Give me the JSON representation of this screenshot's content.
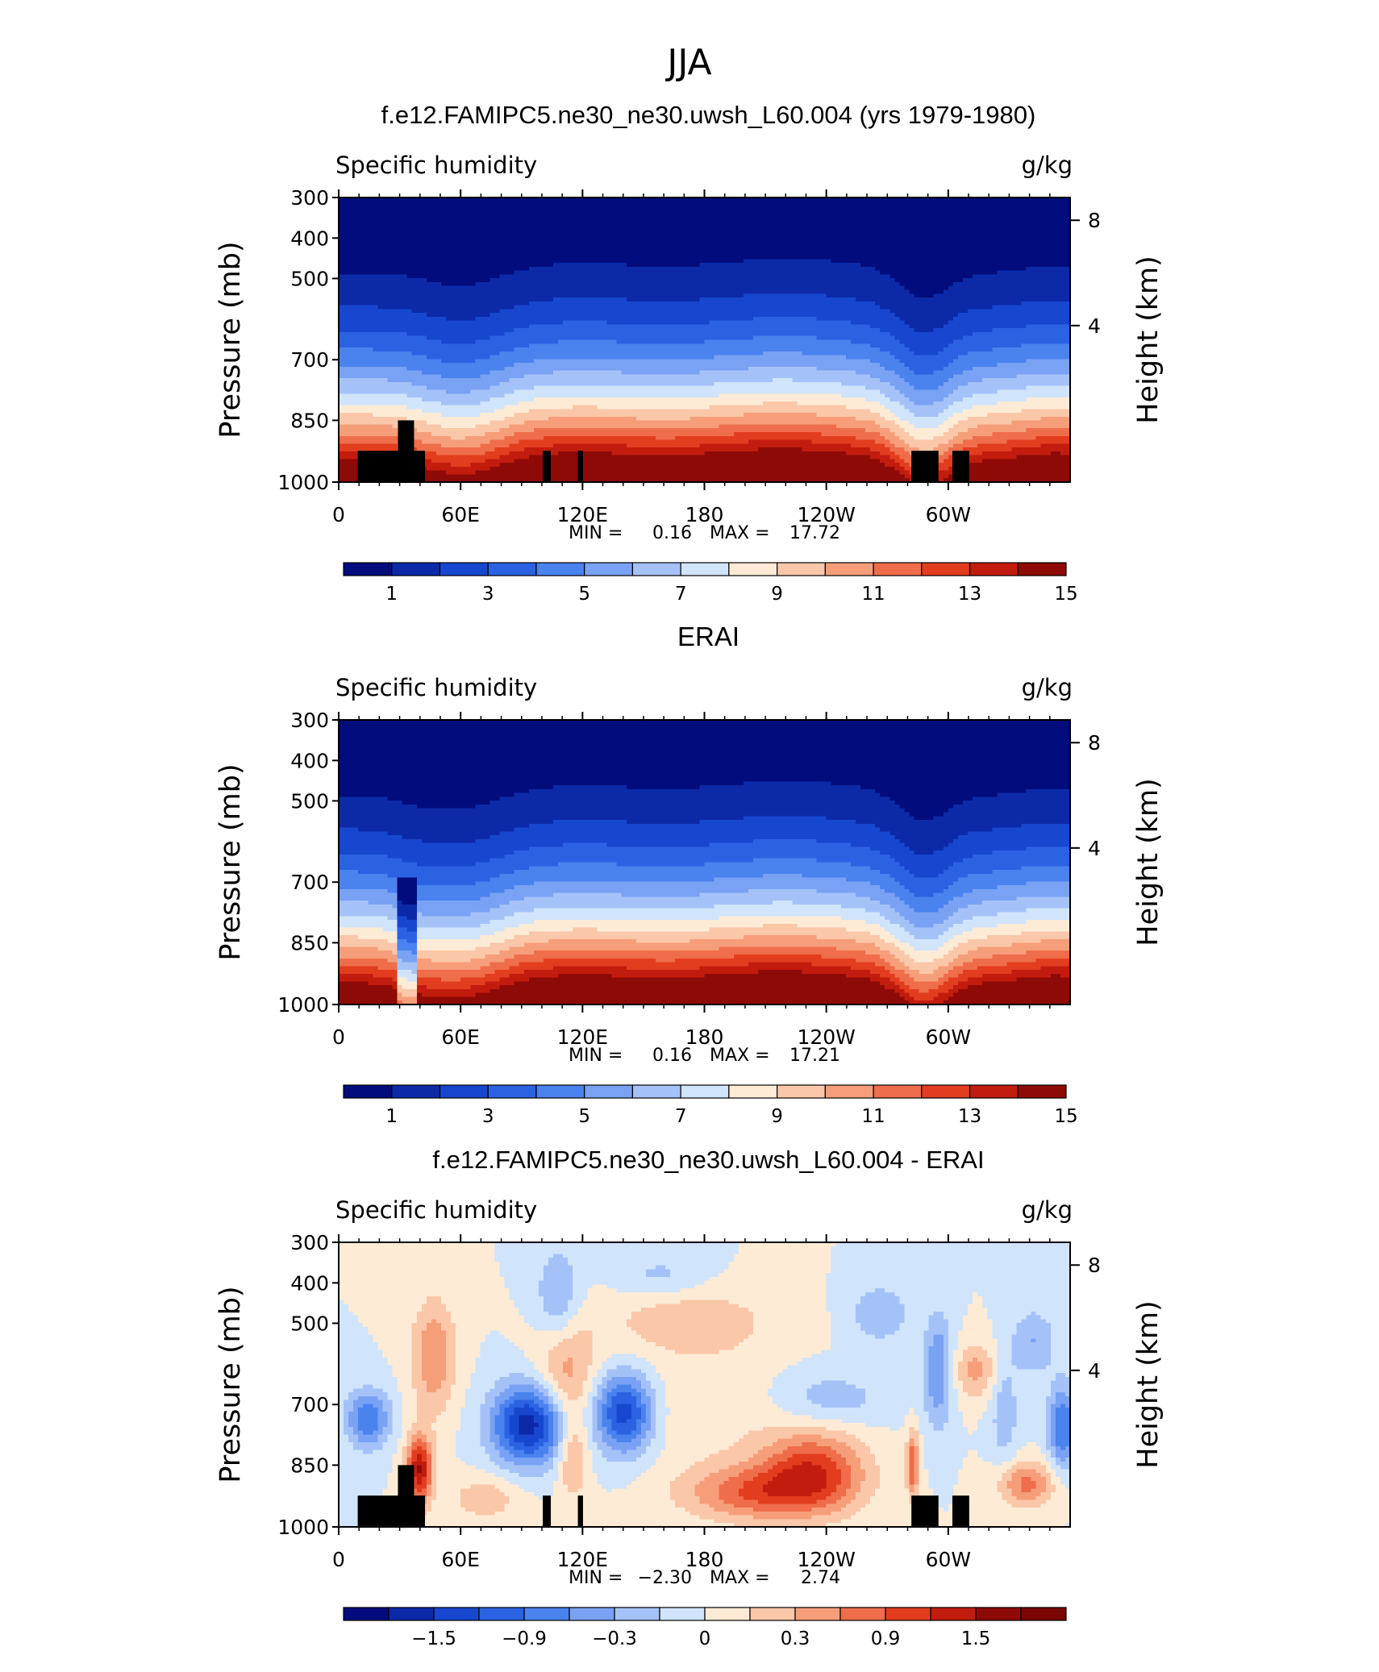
{
  "figure": {
    "title": "JJA"
  },
  "colors": {
    "seq": [
      "#020c7c",
      "#0c2aa8",
      "#1747cf",
      "#2b62e2",
      "#4a82ee",
      "#79a2f4",
      "#a5c2f8",
      "#d0e4fb",
      "#fdebd6",
      "#fbc7a9",
      "#f69e7a",
      "#ef6d4a",
      "#e23d1f",
      "#c21c0e",
      "#8e0a06"
    ],
    "div": [
      "#020c7c",
      "#0c2aa8",
      "#1747cf",
      "#2b62e2",
      "#4a82ee",
      "#79a2f4",
      "#a5c2f8",
      "#d0e4fb",
      "#fdebd6",
      "#fbc7a9",
      "#f69e7a",
      "#ef6d4a",
      "#e23d1f",
      "#c21c0e",
      "#8e0a06",
      "#7a0503"
    ]
  },
  "chart_data": [
    {
      "type": "heatmap",
      "title": "f.e12.FAMIPC5.ne30_ne30.uwsh_L60.004 (yrs 1979-1980)",
      "left_label": "Specific humidity",
      "right_label": "g/kg",
      "ylabel": "Pressure (mb)",
      "y2label": "Height (km)",
      "y_ticks": [
        "300",
        "400",
        "500",
        "700",
        "850",
        "1000"
      ],
      "y2_ticks": [
        "8",
        "4"
      ],
      "x_ticks": [
        "0",
        "60E",
        "120E",
        "180",
        "120W",
        "60W"
      ],
      "stats": {
        "min_label": "MIN =",
        "min": "0.16",
        "max_label": "MAX =",
        "max": "17.72"
      },
      "colorbar_labels": [
        "1",
        "3",
        "5",
        "7",
        "9",
        "11",
        "13",
        "15"
      ],
      "colorbar_levels": [
        1,
        2,
        3,
        4,
        5,
        6,
        7,
        8,
        9,
        10,
        11,
        12,
        13,
        14
      ],
      "terrain_mask": true
    },
    {
      "type": "heatmap",
      "title": "ERAI",
      "left_label": "Specific humidity",
      "right_label": "g/kg",
      "ylabel": "Pressure (mb)",
      "y2label": "Height (km)",
      "y_ticks": [
        "300",
        "400",
        "500",
        "700",
        "850",
        "1000"
      ],
      "y2_ticks": [
        "8",
        "4"
      ],
      "x_ticks": [
        "0",
        "60E",
        "120E",
        "180",
        "120W",
        "60W"
      ],
      "stats": {
        "min_label": "MIN =",
        "min": "0.16",
        "max_label": "MAX =",
        "max": "17.21"
      },
      "colorbar_labels": [
        "1",
        "3",
        "5",
        "7",
        "9",
        "11",
        "13",
        "15"
      ],
      "colorbar_levels": [
        1,
        2,
        3,
        4,
        5,
        6,
        7,
        8,
        9,
        10,
        11,
        12,
        13,
        14
      ],
      "terrain_mask": false
    },
    {
      "type": "heatmap",
      "title": "f.e12.FAMIPC5.ne30_ne30.uwsh_L60.004 - ERAI",
      "left_label": "Specific humidity",
      "right_label": "g/kg",
      "ylabel": "Pressure (mb)",
      "y2label": "Height (km)",
      "y_ticks": [
        "300",
        "400",
        "500",
        "700",
        "850",
        "1000"
      ],
      "y2_ticks": [
        "8",
        "4"
      ],
      "x_ticks": [
        "0",
        "60E",
        "120E",
        "180",
        "120W",
        "60W"
      ],
      "stats": {
        "min_label": "MIN =",
        "min": "−2.30",
        "max_label": "MAX =",
        "max": "2.74"
      },
      "colorbar_labels": [
        "−1.5",
        "−0.9",
        "−0.3",
        "0",
        "0.3",
        "0.9",
        "1.5"
      ],
      "colorbar_levels": [
        -2.1,
        -1.8,
        -1.5,
        -1.2,
        -0.9,
        -0.6,
        -0.3,
        0,
        0.3,
        0.6,
        0.9,
        1.2,
        1.5,
        1.8,
        2.1
      ],
      "terrain_mask": true
    }
  ]
}
